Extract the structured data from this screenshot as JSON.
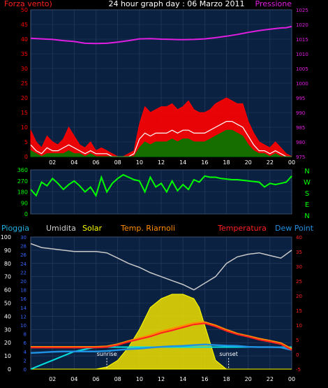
{
  "header": {
    "title": "24 hour graph day : 06 Marzo 2011",
    "left_label": "Forza vento)",
    "right_label": "Pressione"
  },
  "legend": {
    "pioggia": "Pioggia",
    "umidita": "Umidita",
    "solar": "Solar",
    "temp_riarnoli": "Temp. Riarnoli",
    "temperatura": "Temperatura",
    "dew_point": "Dew Point"
  },
  "annotations": {
    "sunrise": "sunrise",
    "sunset": "sunset"
  },
  "colors": {
    "panel_bg": "#0b2142",
    "grid": "#2a3f63",
    "wind_gust": "#ff0000",
    "wind_avg": "#ffffff",
    "wind_min": "#007a00",
    "pressure": "#e01ee0",
    "direction": "#00ff00",
    "humidity": "#c8c8c8",
    "solar": "#ffff00",
    "temperature": "#ff2020",
    "temp_riarnoli": "#ff8c00",
    "dew_point": "#2090e0",
    "rain": "#00e0e0",
    "axis_left_blue": "#3366ff",
    "axis_right_red": "#ff2020"
  },
  "chart_data": [
    {
      "type": "line",
      "name": "wind-pressure",
      "x_ticks": [
        "02",
        "04",
        "06",
        "08",
        "10",
        "12",
        "14",
        "16",
        "18",
        "20",
        "22",
        "00"
      ],
      "y_left": {
        "label": "Forza vento)",
        "ticks": [
          0,
          5,
          10,
          15,
          20,
          25,
          30,
          35,
          40,
          45,
          50
        ],
        "range": [
          0,
          50
        ]
      },
      "y_right": {
        "label": "Pressione",
        "ticks": [
          975,
          980,
          985,
          990,
          995,
          1000,
          1005,
          1010,
          1015,
          1020,
          1025
        ],
        "range": [
          975,
          1025
        ]
      },
      "x_range": [
        0,
        24
      ],
      "series": [
        {
          "name": "Pressione",
          "axis": "right",
          "x": [
            0,
            1,
            2,
            3,
            4,
            5,
            6,
            7,
            8,
            9,
            10,
            11,
            12,
            13,
            14,
            15,
            16,
            17,
            18,
            19,
            20,
            21,
            22,
            23,
            23.5,
            24
          ],
          "y": [
            1015.3,
            1015.1,
            1014.9,
            1014.5,
            1014.2,
            1013.6,
            1013.5,
            1013.6,
            1014.0,
            1014.5,
            1015.1,
            1015.2,
            1015.0,
            1014.9,
            1014.8,
            1014.9,
            1015.1,
            1015.5,
            1016.0,
            1016.6,
            1017.3,
            1017.9,
            1018.4,
            1018.8,
            1018.9,
            1019.3
          ]
        },
        {
          "name": "Wind gust",
          "axis": "left",
          "x": [
            0,
            0.5,
            1,
            1.5,
            2,
            2.5,
            3,
            3.5,
            4,
            4.5,
            5,
            5.5,
            6,
            6.5,
            7,
            7.5,
            8,
            8.5,
            9,
            9.5,
            10,
            10.5,
            11,
            11.5,
            12,
            12.5,
            13,
            13.5,
            14,
            14.5,
            15,
            15.5,
            16,
            16.5,
            17,
            17.5,
            18,
            18.5,
            19,
            19.5,
            20,
            20.5,
            21,
            21.5,
            22,
            22.5,
            23,
            23.5,
            24
          ],
          "y": [
            9,
            5,
            3,
            7,
            5,
            4,
            6,
            10,
            7,
            4,
            3,
            5,
            2,
            3,
            2,
            1,
            0,
            0,
            1,
            2,
            11,
            17,
            15,
            16,
            17,
            17,
            18,
            16,
            17,
            19,
            16,
            15,
            15,
            16,
            18,
            19,
            20,
            19,
            18,
            18,
            12,
            8,
            5,
            4,
            3,
            5,
            3,
            1,
            0
          ]
        },
        {
          "name": "Wind avg",
          "axis": "left",
          "x": [
            0,
            0.5,
            1,
            1.5,
            2,
            2.5,
            3,
            3.5,
            4,
            4.5,
            5,
            5.5,
            6,
            6.5,
            7,
            7.5,
            8,
            8.5,
            9,
            9.5,
            10,
            10.5,
            11,
            11.5,
            12,
            12.5,
            13,
            13.5,
            14,
            14.5,
            15,
            15.5,
            16,
            16.5,
            17,
            17.5,
            18,
            18.5,
            19,
            19.5,
            20,
            20.5,
            21,
            21.5,
            22,
            22.5,
            23,
            23.5,
            24
          ],
          "y": [
            4,
            2,
            1,
            3,
            2,
            2,
            3,
            4,
            3,
            2,
            1,
            2,
            1,
            1,
            1,
            0,
            0,
            0,
            0,
            1,
            6,
            8,
            7,
            8,
            8,
            8,
            9,
            8,
            9,
            9,
            8,
            8,
            8,
            9,
            10,
            11,
            12,
            12,
            11,
            10,
            7,
            4,
            2,
            2,
            1,
            2,
            1,
            0,
            0
          ]
        },
        {
          "name": "Wind min",
          "axis": "left",
          "x": [
            0,
            0.5,
            1,
            1.5,
            2,
            2.5,
            3,
            3.5,
            4,
            4.5,
            5,
            5.5,
            6,
            6.5,
            7,
            7.5,
            8,
            8.5,
            9,
            9.5,
            10,
            10.5,
            11,
            11.5,
            12,
            12.5,
            13,
            13.5,
            14,
            14.5,
            15,
            15.5,
            16,
            16.5,
            17,
            17.5,
            18,
            18.5,
            19,
            19.5,
            20,
            20.5,
            21,
            21.5,
            22,
            22.5,
            23,
            23.5,
            24
          ],
          "y": [
            2,
            1,
            0,
            1,
            1,
            1,
            1,
            2,
            1,
            1,
            0,
            1,
            0,
            0,
            0,
            0,
            0,
            0,
            0,
            0,
            3,
            5,
            4,
            5,
            5,
            5,
            6,
            5,
            6,
            6,
            5,
            5,
            5,
            6,
            7,
            8,
            9,
            9,
            8,
            7,
            4,
            2,
            1,
            1,
            0,
            1,
            0,
            0,
            0
          ]
        }
      ]
    },
    {
      "type": "line",
      "name": "wind-direction",
      "x_range": [
        0,
        24
      ],
      "y_left": {
        "ticks": [
          0,
          90,
          180,
          270,
          360
        ],
        "range": [
          0,
          360
        ]
      },
      "y_right": {
        "ticks": [
          "N",
          "W",
          "S",
          "E",
          "N"
        ]
      },
      "series": [
        {
          "name": "Direction",
          "x": [
            0,
            0.5,
            1,
            1.5,
            2,
            2.5,
            3,
            3.5,
            4,
            4.5,
            5,
            5.5,
            6,
            6.5,
            7,
            7.5,
            8,
            8.5,
            9,
            9.5,
            10,
            10.5,
            11,
            11.5,
            12,
            12.5,
            13,
            13.5,
            14,
            14.5,
            15,
            15.5,
            16,
            16.5,
            17,
            17.5,
            18,
            18.5,
            19,
            19.5,
            20,
            20.5,
            21,
            21.5,
            22,
            22.5,
            23,
            23.5,
            24
          ],
          "y": [
            200,
            150,
            260,
            230,
            290,
            250,
            200,
            240,
            270,
            230,
            180,
            220,
            150,
            300,
            180,
            250,
            290,
            320,
            300,
            280,
            270,
            180,
            300,
            220,
            250,
            180,
            270,
            190,
            240,
            200,
            280,
            260,
            310,
            300,
            300,
            290,
            285,
            280,
            280,
            275,
            270,
            265,
            260,
            220,
            250,
            240,
            250,
            260,
            310
          ]
        }
      ]
    },
    {
      "type": "line",
      "name": "weather",
      "x_range": [
        0,
        24
      ],
      "y_left_pct": {
        "ticks": [
          0,
          10,
          20,
          30,
          40,
          50,
          60,
          70,
          80,
          90,
          100
        ],
        "range": [
          0,
          100
        ]
      },
      "y_left_small": {
        "ticks": [
          0,
          2,
          4,
          6,
          8,
          10,
          12,
          14,
          16,
          18,
          20,
          22,
          24,
          26,
          28,
          30
        ],
        "range": [
          0,
          30
        ]
      },
      "y_right": {
        "ticks": [
          -5,
          0,
          5,
          10,
          15,
          20,
          25,
          30,
          35,
          40
        ],
        "range": [
          -5,
          40
        ]
      },
      "series": [
        {
          "name": "Umidita",
          "axis": "pct",
          "x": [
            0,
            1,
            2,
            3,
            4,
            5,
            6,
            7,
            8,
            9,
            10,
            11,
            12,
            13,
            14,
            15,
            16,
            17,
            18,
            19,
            20,
            21,
            22,
            23,
            24
          ],
          "y": [
            95,
            92,
            91,
            90,
            89,
            89,
            89,
            88,
            84,
            80,
            77,
            73,
            70,
            67,
            64,
            60,
            65,
            70,
            80,
            85,
            87,
            88,
            86,
            84,
            90
          ]
        },
        {
          "name": "Solar",
          "axis": "small",
          "x": [
            0,
            6,
            7,
            8,
            9,
            10,
            11,
            12,
            13,
            14,
            15,
            15.5,
            16,
            16.5,
            17,
            18,
            24
          ],
          "y": [
            0,
            0,
            0.5,
            2,
            5,
            9,
            14,
            16,
            17,
            17,
            16,
            14,
            10,
            6,
            2,
            0,
            0
          ]
        },
        {
          "name": "Temperatura",
          "axis": "right",
          "x": [
            0,
            1,
            2,
            3,
            4,
            5,
            6,
            7,
            8,
            9,
            10,
            11,
            12,
            13,
            14,
            15,
            16,
            17,
            18,
            19,
            20,
            21,
            22,
            23,
            24
          ],
          "y": [
            2.3,
            2.3,
            2.3,
            2.3,
            2.3,
            2.3,
            2.3,
            2.5,
            3.2,
            4.3,
            5.2,
            6.1,
            7.3,
            8.2,
            9.2,
            10.2,
            10.6,
            9.5,
            8.0,
            6.8,
            6.0,
            5.0,
            4.3,
            3.5,
            1.5
          ]
        },
        {
          "name": "Temp. Riarnoli",
          "axis": "right",
          "x": [
            0,
            1,
            2,
            3,
            4,
            5,
            6,
            7,
            8,
            9,
            10,
            11,
            12,
            13,
            14,
            15,
            16,
            17,
            18,
            19,
            20,
            21,
            22,
            23,
            24
          ],
          "y": [
            2.5,
            2.5,
            2.5,
            2.5,
            2.5,
            2.5,
            2.5,
            2.7,
            3.4,
            4.5,
            5.5,
            6.5,
            7.8,
            8.7,
            9.7,
            10.6,
            10.9,
            9.8,
            8.3,
            7.0,
            6.2,
            5.3,
            4.6,
            3.8,
            1.8
          ]
        },
        {
          "name": "Dew Point",
          "axis": "right",
          "x": [
            0,
            1,
            2,
            3,
            4,
            5,
            6,
            7,
            8,
            9,
            10,
            11,
            12,
            13,
            14,
            15,
            16,
            17,
            18,
            19,
            20,
            21,
            22,
            23,
            24
          ],
          "y": [
            0.5,
            0.7,
            0.9,
            1.0,
            1.0,
            1.0,
            1.0,
            1.2,
            1.5,
            1.8,
            2.0,
            2.3,
            2.6,
            2.8,
            2.9,
            3.2,
            3.4,
            3.2,
            3.0,
            2.9,
            2.6,
            2.5,
            2.5,
            2.4,
            1.5
          ]
        },
        {
          "name": "Pioggia",
          "axis": "small",
          "x": [
            0,
            1,
            2,
            3,
            4,
            5,
            6,
            6.5,
            24
          ],
          "y": [
            0,
            1,
            2,
            3,
            4,
            4.5,
            5,
            5,
            5
          ]
        }
      ],
      "markers": [
        {
          "label": "sunrise",
          "x": 7.0
        },
        {
          "label": "sunset",
          "x": 18.2
        }
      ]
    }
  ]
}
